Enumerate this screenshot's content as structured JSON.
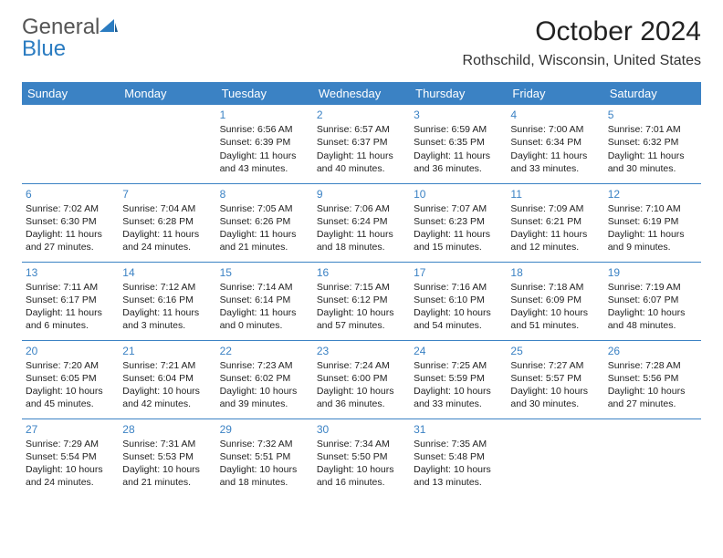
{
  "brand": {
    "part1": "General",
    "part2": "Blue"
  },
  "colors": {
    "header_bg": "#3b82c4",
    "header_text": "#ffffff",
    "daynum": "#3b82c4",
    "separator": "#3b82c4",
    "body_text": "#222222",
    "background": "#ffffff"
  },
  "title": "October 2024",
  "location": "Rothschild, Wisconsin, United States",
  "weekdays": [
    "Sunday",
    "Monday",
    "Tuesday",
    "Wednesday",
    "Thursday",
    "Friday",
    "Saturday"
  ],
  "type": "table",
  "weeks": [
    [
      null,
      null,
      {
        "n": "1",
        "rise": "6:56 AM",
        "set": "6:39 PM",
        "dl": "11 hours and 43 minutes."
      },
      {
        "n": "2",
        "rise": "6:57 AM",
        "set": "6:37 PM",
        "dl": "11 hours and 40 minutes."
      },
      {
        "n": "3",
        "rise": "6:59 AM",
        "set": "6:35 PM",
        "dl": "11 hours and 36 minutes."
      },
      {
        "n": "4",
        "rise": "7:00 AM",
        "set": "6:34 PM",
        "dl": "11 hours and 33 minutes."
      },
      {
        "n": "5",
        "rise": "7:01 AM",
        "set": "6:32 PM",
        "dl": "11 hours and 30 minutes."
      }
    ],
    [
      {
        "n": "6",
        "rise": "7:02 AM",
        "set": "6:30 PM",
        "dl": "11 hours and 27 minutes."
      },
      {
        "n": "7",
        "rise": "7:04 AM",
        "set": "6:28 PM",
        "dl": "11 hours and 24 minutes."
      },
      {
        "n": "8",
        "rise": "7:05 AM",
        "set": "6:26 PM",
        "dl": "11 hours and 21 minutes."
      },
      {
        "n": "9",
        "rise": "7:06 AM",
        "set": "6:24 PM",
        "dl": "11 hours and 18 minutes."
      },
      {
        "n": "10",
        "rise": "7:07 AM",
        "set": "6:23 PM",
        "dl": "11 hours and 15 minutes."
      },
      {
        "n": "11",
        "rise": "7:09 AM",
        "set": "6:21 PM",
        "dl": "11 hours and 12 minutes."
      },
      {
        "n": "12",
        "rise": "7:10 AM",
        "set": "6:19 PM",
        "dl": "11 hours and 9 minutes."
      }
    ],
    [
      {
        "n": "13",
        "rise": "7:11 AM",
        "set": "6:17 PM",
        "dl": "11 hours and 6 minutes."
      },
      {
        "n": "14",
        "rise": "7:12 AM",
        "set": "6:16 PM",
        "dl": "11 hours and 3 minutes."
      },
      {
        "n": "15",
        "rise": "7:14 AM",
        "set": "6:14 PM",
        "dl": "11 hours and 0 minutes."
      },
      {
        "n": "16",
        "rise": "7:15 AM",
        "set": "6:12 PM",
        "dl": "10 hours and 57 minutes."
      },
      {
        "n": "17",
        "rise": "7:16 AM",
        "set": "6:10 PM",
        "dl": "10 hours and 54 minutes."
      },
      {
        "n": "18",
        "rise": "7:18 AM",
        "set": "6:09 PM",
        "dl": "10 hours and 51 minutes."
      },
      {
        "n": "19",
        "rise": "7:19 AM",
        "set": "6:07 PM",
        "dl": "10 hours and 48 minutes."
      }
    ],
    [
      {
        "n": "20",
        "rise": "7:20 AM",
        "set": "6:05 PM",
        "dl": "10 hours and 45 minutes."
      },
      {
        "n": "21",
        "rise": "7:21 AM",
        "set": "6:04 PM",
        "dl": "10 hours and 42 minutes."
      },
      {
        "n": "22",
        "rise": "7:23 AM",
        "set": "6:02 PM",
        "dl": "10 hours and 39 minutes."
      },
      {
        "n": "23",
        "rise": "7:24 AM",
        "set": "6:00 PM",
        "dl": "10 hours and 36 minutes."
      },
      {
        "n": "24",
        "rise": "7:25 AM",
        "set": "5:59 PM",
        "dl": "10 hours and 33 minutes."
      },
      {
        "n": "25",
        "rise": "7:27 AM",
        "set": "5:57 PM",
        "dl": "10 hours and 30 minutes."
      },
      {
        "n": "26",
        "rise": "7:28 AM",
        "set": "5:56 PM",
        "dl": "10 hours and 27 minutes."
      }
    ],
    [
      {
        "n": "27",
        "rise": "7:29 AM",
        "set": "5:54 PM",
        "dl": "10 hours and 24 minutes."
      },
      {
        "n": "28",
        "rise": "7:31 AM",
        "set": "5:53 PM",
        "dl": "10 hours and 21 minutes."
      },
      {
        "n": "29",
        "rise": "7:32 AM",
        "set": "5:51 PM",
        "dl": "10 hours and 18 minutes."
      },
      {
        "n": "30",
        "rise": "7:34 AM",
        "set": "5:50 PM",
        "dl": "10 hours and 16 minutes."
      },
      {
        "n": "31",
        "rise": "7:35 AM",
        "set": "5:48 PM",
        "dl": "10 hours and 13 minutes."
      },
      null,
      null
    ]
  ],
  "labels": {
    "sunrise": "Sunrise:",
    "sunset": "Sunset:",
    "daylight": "Daylight:"
  }
}
